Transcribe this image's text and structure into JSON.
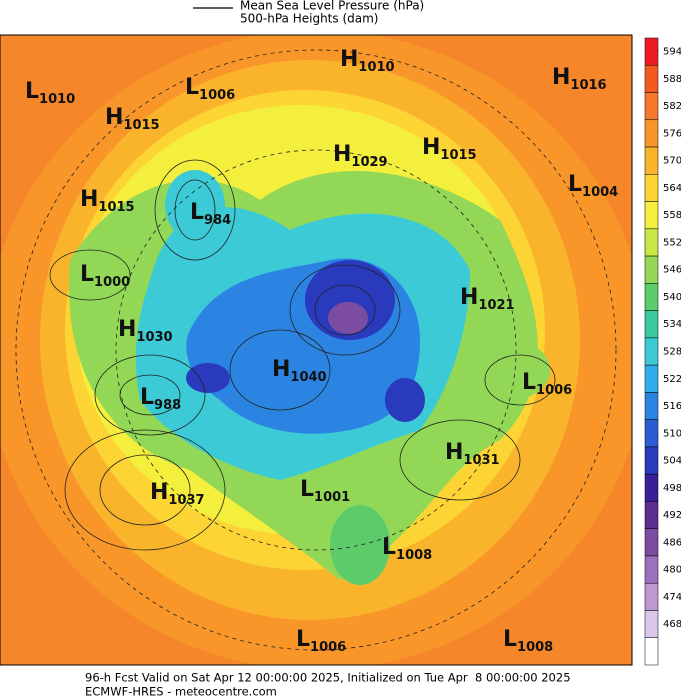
{
  "legend": {
    "pressure": "Mean Sea Level Pressure (hPa)",
    "heights": "500-hPa Heights (dam)"
  },
  "colorbar": {
    "ticks": [
      594,
      588,
      582,
      576,
      570,
      564,
      558,
      552,
      546,
      540,
      534,
      528,
      522,
      516,
      510,
      504,
      498,
      492,
      486,
      480,
      474,
      468
    ],
    "colors": [
      "#ec1c24",
      "#f45a1e",
      "#f6782a",
      "#f8962a",
      "#fab42c",
      "#fcd434",
      "#f4ee3c",
      "#c8e646",
      "#92d856",
      "#5ccc6a",
      "#3ec89e",
      "#3ccad6",
      "#32acea",
      "#2c84e2",
      "#2a5cd2",
      "#2a3abc",
      "#3a1f9a",
      "#5c2c8e",
      "#7c4ca2",
      "#9c70bc",
      "#bc98d4",
      "#dcc6ec",
      "#ffffff"
    ]
  },
  "centers": [
    {
      "kind": "L",
      "value": 1010
    },
    {
      "kind": "H",
      "value": 1015
    },
    {
      "kind": "L",
      "value": 1006
    },
    {
      "kind": "H",
      "value": 1010
    },
    {
      "kind": "H",
      "value": 1016
    },
    {
      "kind": "H",
      "value": 1029
    },
    {
      "kind": "H",
      "value": 1015
    },
    {
      "kind": "L",
      "value": 1004
    },
    {
      "kind": "H",
      "value": 1015
    },
    {
      "kind": "L",
      "value": 984
    },
    {
      "kind": "L",
      "value": 1000
    },
    {
      "kind": "H",
      "value": 1021
    },
    {
      "kind": "H",
      "value": 1030
    },
    {
      "kind": "H",
      "value": 1040
    },
    {
      "kind": "L",
      "value": 1006
    },
    {
      "kind": "L",
      "value": 988
    },
    {
      "kind": "H",
      "value": 1031
    },
    {
      "kind": "H",
      "value": 1037
    },
    {
      "kind": "L",
      "value": 1001
    },
    {
      "kind": "L",
      "value": 1008
    },
    {
      "kind": "L",
      "value": 1006
    },
    {
      "kind": "L",
      "value": 1008
    }
  ],
  "footer": {
    "line1": "96-h Fcst Valid on Sat Apr 12 00:00:00 2025, Initialized on Tue Apr  8 00:00:00 2025",
    "line2": "ECMWF-HRES - meteocentre.com"
  }
}
